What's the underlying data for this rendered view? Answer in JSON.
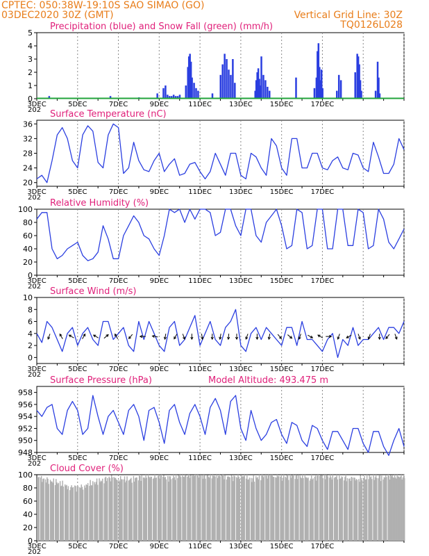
{
  "header": {
    "line1_left": "CPTEC:   050:38W-19:10S   SAO SIMAO (GO)",
    "line2_left": "03DEC2020 30Z (GMT)",
    "line2_right": "Vertical Grid Line: 30Z",
    "line3_right": "TQ0126L028"
  },
  "colors": {
    "header": "#e87d1a",
    "titles": "#e0207a",
    "line": "#2a3ee0",
    "snow": "#21a33a",
    "cloud": "#b0b0b0"
  },
  "x_ticks": [
    "3DEC",
    "5DEC",
    "7DEC",
    "9DEC",
    "11DEC",
    "13DEC",
    "15DEC",
    "17DEC"
  ],
  "x_year_fragment": "202",
  "chart_data": [
    {
      "type": "bar",
      "title": "Precipitation (blue) and Snow Fall (green) (mm/h)",
      "ylim": [
        0,
        5
      ],
      "yticks": [
        0,
        1,
        2,
        3,
        4,
        5
      ],
      "series": [
        {
          "name": "Precipitation",
          "x": [
            0.6,
            3.6,
            5.0,
            5.9,
            6.2,
            6.3,
            6.4,
            6.5,
            6.6,
            6.7,
            6.8,
            6.9,
            7.0,
            7.3,
            7.4,
            7.45,
            7.5,
            7.55,
            7.6,
            7.7,
            7.8,
            7.9,
            8.6,
            9.0,
            9.1,
            9.2,
            9.3,
            9.4,
            9.5,
            9.6,
            9.7,
            10.7,
            10.75,
            10.8,
            10.85,
            10.9,
            10.95,
            11.0,
            11.1,
            11.2,
            11.3,
            11.4,
            12.7,
            13.6,
            13.7,
            13.75,
            13.8,
            13.85,
            13.9,
            13.95,
            14.0,
            14.7,
            14.8,
            14.9,
            15.6,
            15.7,
            15.75,
            15.8,
            15.85,
            15.9,
            16.6,
            16.7,
            16.75,
            16.8
          ],
          "values": [
            0.2,
            0.2,
            0.1,
            0.4,
            0.8,
            1.0,
            0.3,
            0.2,
            0.2,
            0.3,
            0.2,
            0.2,
            0.3,
            1.0,
            2.4,
            3.2,
            3.4,
            2.8,
            1.6,
            1.2,
            0.8,
            0.6,
            0.4,
            1.8,
            2.6,
            3.4,
            3.0,
            2.2,
            1.8,
            3.0,
            1.2,
            0.6,
            1.4,
            2.0,
            2.3,
            1.5,
            1.0,
            3.2,
            1.8,
            1.4,
            0.9,
            0.6,
            1.6,
            0.8,
            1.6,
            3.6,
            4.2,
            2.4,
            1.4,
            2.2,
            0.8,
            0.6,
            1.8,
            1.4,
            2.0,
            3.4,
            3.2,
            2.6,
            1.4,
            0.6,
            0.6,
            2.8,
            1.6,
            0.4
          ]
        },
        {
          "name": "Snow Fall",
          "x": [
            0,
            18
          ],
          "values": [
            0,
            0
          ]
        }
      ]
    },
    {
      "type": "line",
      "title": "Surface Temperature (nC)",
      "ylim": [
        19,
        37
      ],
      "yticks": [
        20,
        24,
        28,
        32,
        36
      ],
      "series": [
        {
          "name": "Surface Temperature",
          "x": [
            0,
            0.25,
            0.5,
            0.75,
            1.0,
            1.25,
            1.5,
            1.75,
            2.0,
            2.25,
            2.5,
            2.75,
            3.0,
            3.25,
            3.5,
            3.75,
            4.0,
            4.25,
            4.5,
            4.75,
            5.0,
            5.25,
            5.5,
            5.75,
            6.0,
            6.25,
            6.5,
            6.75,
            7.0,
            7.25,
            7.5,
            7.75,
            8.0,
            8.25,
            8.5,
            8.75,
            9.0,
            9.25,
            9.5,
            9.75,
            10.0,
            10.25,
            10.5,
            10.75,
            11.0,
            11.25,
            11.5,
            11.75,
            12.0,
            12.25,
            12.5,
            12.75,
            13.0,
            13.25,
            13.5,
            13.75,
            14.0,
            14.25,
            14.5,
            14.75,
            15.0,
            15.25,
            15.5,
            15.75,
            16.0,
            16.25,
            16.5,
            16.75,
            17.0,
            17.25,
            17.5,
            17.75,
            18.0
          ],
          "values": [
            21,
            22,
            20,
            26,
            33,
            35,
            32,
            26,
            24,
            33,
            35.5,
            34,
            25.5,
            24,
            33,
            36,
            35,
            22.5,
            24,
            31,
            26,
            23.5,
            23,
            26,
            28,
            23,
            25,
            26.5,
            22,
            22.5,
            25,
            25.5,
            23,
            21,
            23,
            28,
            25,
            22,
            28,
            28,
            22,
            21,
            28,
            27,
            24,
            22,
            32,
            30,
            24,
            22,
            32,
            32,
            24,
            24,
            28,
            28,
            24,
            23.5,
            26,
            27,
            24,
            23.5,
            28,
            27.5,
            24,
            23,
            31,
            27,
            22.5,
            22.5,
            25,
            32,
            29
          ]
        }
      ]
    },
    {
      "type": "line",
      "title": "Relative Humidity (%)",
      "ylim": [
        0,
        100
      ],
      "yticks": [
        0,
        20,
        40,
        60,
        80,
        100
      ],
      "series": [
        {
          "name": "Relative Humidity",
          "x": [
            0,
            0.25,
            0.5,
            0.75,
            1.0,
            1.25,
            1.5,
            1.75,
            2.0,
            2.25,
            2.5,
            2.75,
            3.0,
            3.25,
            3.5,
            3.75,
            4.0,
            4.25,
            4.5,
            4.75,
            5.0,
            5.25,
            5.5,
            5.75,
            6.0,
            6.25,
            6.5,
            6.75,
            7.0,
            7.25,
            7.5,
            7.75,
            8.0,
            8.25,
            8.5,
            8.75,
            9.0,
            9.25,
            9.5,
            9.75,
            10.0,
            10.25,
            10.5,
            10.75,
            11.0,
            11.25,
            11.5,
            11.75,
            12.0,
            12.25,
            12.5,
            12.75,
            13.0,
            13.25,
            13.5,
            13.75,
            14.0,
            14.25,
            14.5,
            14.75,
            15.0,
            15.25,
            15.5,
            15.75,
            16.0,
            16.25,
            16.5,
            16.75,
            17.0,
            17.25,
            17.5,
            17.75,
            18.0
          ],
          "values": [
            85,
            95,
            95,
            40,
            25,
            30,
            40,
            45,
            50,
            30,
            22,
            25,
            35,
            75,
            55,
            25,
            25,
            60,
            75,
            90,
            80,
            60,
            55,
            40,
            30,
            60,
            100,
            95,
            100,
            80,
            100,
            85,
            100,
            100,
            95,
            60,
            65,
            100,
            100,
            75,
            60,
            100,
            100,
            60,
            50,
            80,
            90,
            100,
            75,
            40,
            45,
            100,
            95,
            40,
            45,
            100,
            100,
            40,
            40,
            100,
            100,
            45,
            45,
            100,
            95,
            40,
            45,
            100,
            85,
            50,
            40,
            55,
            70
          ]
        }
      ]
    },
    {
      "type": "line",
      "title": "Surface Wind (m/s)",
      "ylim": [
        -1,
        10
      ],
      "yticks": [
        0,
        2,
        4,
        6,
        8,
        10
      ],
      "series": [
        {
          "name": "Surface Wind",
          "x": [
            0,
            0.25,
            0.5,
            0.75,
            1.0,
            1.25,
            1.5,
            1.75,
            2.0,
            2.25,
            2.5,
            2.75,
            3.0,
            3.25,
            3.5,
            3.75,
            4.0,
            4.25,
            4.5,
            4.75,
            5.0,
            5.25,
            5.5,
            5.75,
            6.0,
            6.25,
            6.5,
            6.75,
            7.0,
            7.25,
            7.5,
            7.75,
            8.0,
            8.25,
            8.5,
            8.75,
            9.0,
            9.25,
            9.5,
            9.75,
            10.0,
            10.25,
            10.5,
            10.75,
            11.0,
            11.25,
            11.5,
            11.75,
            12.0,
            12.25,
            12.5,
            12.75,
            13.0,
            13.25,
            13.5,
            13.75,
            14.0,
            14.25,
            14.5,
            14.75,
            15.0,
            15.25,
            15.5,
            15.75,
            16.0,
            16.25,
            16.5,
            16.75,
            17.0,
            17.25,
            17.5,
            17.75,
            18.0
          ],
          "values": [
            4,
            2.5,
            6,
            5,
            3,
            1,
            4,
            5,
            2,
            4,
            5,
            3,
            2,
            6,
            6,
            3,
            4,
            5,
            2,
            1,
            6,
            3,
            6,
            4,
            2,
            1,
            5,
            6,
            2,
            3,
            5,
            7,
            2,
            4,
            6,
            3,
            2,
            5,
            6,
            8,
            2,
            1,
            4,
            5,
            3,
            5,
            4,
            3,
            2,
            5,
            5,
            2,
            6,
            3,
            3,
            2,
            1,
            3,
            4,
            0,
            3,
            2,
            5,
            2,
            3,
            3,
            4,
            5,
            3,
            5,
            5,
            4,
            6
          ]
        }
      ],
      "arrows": [
        {
          "x": 0.6,
          "dir": 200
        },
        {
          "x": 1.2,
          "dir": 330
        },
        {
          "x": 1.7,
          "dir": 300
        },
        {
          "x": 2.3,
          "dir": 30
        },
        {
          "x": 2.9,
          "dir": 300
        },
        {
          "x": 3.4,
          "dir": 50
        },
        {
          "x": 3.9,
          "dir": 330
        },
        {
          "x": 4.6,
          "dir": 220
        },
        {
          "x": 5.2,
          "dir": 270
        },
        {
          "x": 5.8,
          "dir": 280
        },
        {
          "x": 6.3,
          "dir": 190
        },
        {
          "x": 6.8,
          "dir": 210
        },
        {
          "x": 7.2,
          "dir": 160
        },
        {
          "x": 7.6,
          "dir": 180
        },
        {
          "x": 8.1,
          "dir": 170
        },
        {
          "x": 8.6,
          "dir": 180
        },
        {
          "x": 9.0,
          "dir": 190
        },
        {
          "x": 9.4,
          "dir": 185
        },
        {
          "x": 9.8,
          "dir": 180
        },
        {
          "x": 10.3,
          "dir": 200
        },
        {
          "x": 10.8,
          "dir": 180
        },
        {
          "x": 11.4,
          "dir": 190
        },
        {
          "x": 11.9,
          "dir": 140
        },
        {
          "x": 12.4,
          "dir": 130
        },
        {
          "x": 12.9,
          "dir": 200
        },
        {
          "x": 13.4,
          "dir": 120
        },
        {
          "x": 13.9,
          "dir": 300
        },
        {
          "x": 14.3,
          "dir": 90
        },
        {
          "x": 14.8,
          "dir": 200
        },
        {
          "x": 15.3,
          "dir": 240
        },
        {
          "x": 15.8,
          "dir": 160
        },
        {
          "x": 16.3,
          "dir": 200
        },
        {
          "x": 16.8,
          "dir": 180
        },
        {
          "x": 17.2,
          "dir": 220
        },
        {
          "x": 17.6,
          "dir": 160
        }
      ]
    },
    {
      "type": "line",
      "title": "Surface Pressure (hPa)",
      "annotation": "Model Altitude: 493.475 m",
      "ylim": [
        948,
        959
      ],
      "yticks": [
        948,
        950,
        952,
        954,
        956,
        958
      ],
      "series": [
        {
          "name": "Surface Pressure",
          "x": [
            0,
            0.25,
            0.5,
            0.75,
            1.0,
            1.25,
            1.5,
            1.75,
            2.0,
            2.25,
            2.5,
            2.75,
            3.0,
            3.25,
            3.5,
            3.75,
            4.0,
            4.25,
            4.5,
            4.75,
            5.0,
            5.25,
            5.5,
            5.75,
            6.0,
            6.25,
            6.5,
            6.75,
            7.0,
            7.25,
            7.5,
            7.75,
            8.0,
            8.25,
            8.5,
            8.75,
            9.0,
            9.25,
            9.5,
            9.75,
            10.0,
            10.25,
            10.5,
            10.75,
            11.0,
            11.25,
            11.5,
            11.75,
            12.0,
            12.25,
            12.5,
            12.75,
            13.0,
            13.25,
            13.5,
            13.75,
            14.0,
            14.25,
            14.5,
            14.75,
            15.0,
            15.25,
            15.5,
            15.75,
            16.0,
            16.25,
            16.5,
            16.75,
            17.0,
            17.25,
            17.5,
            17.75,
            18.0
          ],
          "values": [
            955,
            954,
            955.5,
            956,
            952,
            951,
            955,
            956.5,
            955,
            951,
            952,
            957.5,
            954,
            951,
            954,
            955,
            953,
            951,
            955,
            956,
            954,
            950,
            955,
            955.5,
            953,
            949.5,
            955,
            956,
            953,
            951,
            954.5,
            956,
            954,
            951,
            955.5,
            957,
            955,
            951,
            956.5,
            957.5,
            952,
            950,
            955,
            952,
            950,
            951,
            953,
            953.5,
            951,
            949.5,
            953,
            952.5,
            950,
            949,
            952.5,
            952,
            950,
            948.5,
            951.5,
            951.5,
            950,
            948.5,
            952,
            952,
            949.5,
            948,
            951.5,
            951.5,
            949,
            947.5,
            950,
            952,
            949
          ]
        }
      ]
    },
    {
      "type": "area",
      "title": "Cloud Cover (%)",
      "ylim": [
        0,
        100
      ],
      "yticks": [
        0,
        20,
        40,
        60,
        80,
        100
      ],
      "series": [
        {
          "name": "Cloud Cover",
          "x": [
            0,
            0.5,
            1.0,
            1.5,
            2.0,
            2.5,
            3.0,
            3.5,
            4.0,
            4.5,
            5.0,
            5.5,
            6.0,
            6.5,
            7.0,
            7.5,
            8.0,
            8.5,
            9.0,
            9.5,
            10.0,
            10.5,
            11.0,
            11.5,
            12.0,
            12.5,
            13.0,
            13.5,
            14.0,
            14.5,
            15.0,
            15.5,
            16.0,
            16.5,
            17.0,
            17.5,
            18.0
          ],
          "values": [
            95,
            92,
            88,
            82,
            80,
            85,
            90,
            95,
            94,
            92,
            96,
            97,
            98,
            95,
            99,
            100,
            99,
            98,
            100,
            95,
            99,
            93,
            98,
            100,
            96,
            99,
            97,
            95,
            99,
            97,
            96,
            93,
            95,
            97,
            96,
            98,
            97
          ]
        }
      ]
    }
  ]
}
